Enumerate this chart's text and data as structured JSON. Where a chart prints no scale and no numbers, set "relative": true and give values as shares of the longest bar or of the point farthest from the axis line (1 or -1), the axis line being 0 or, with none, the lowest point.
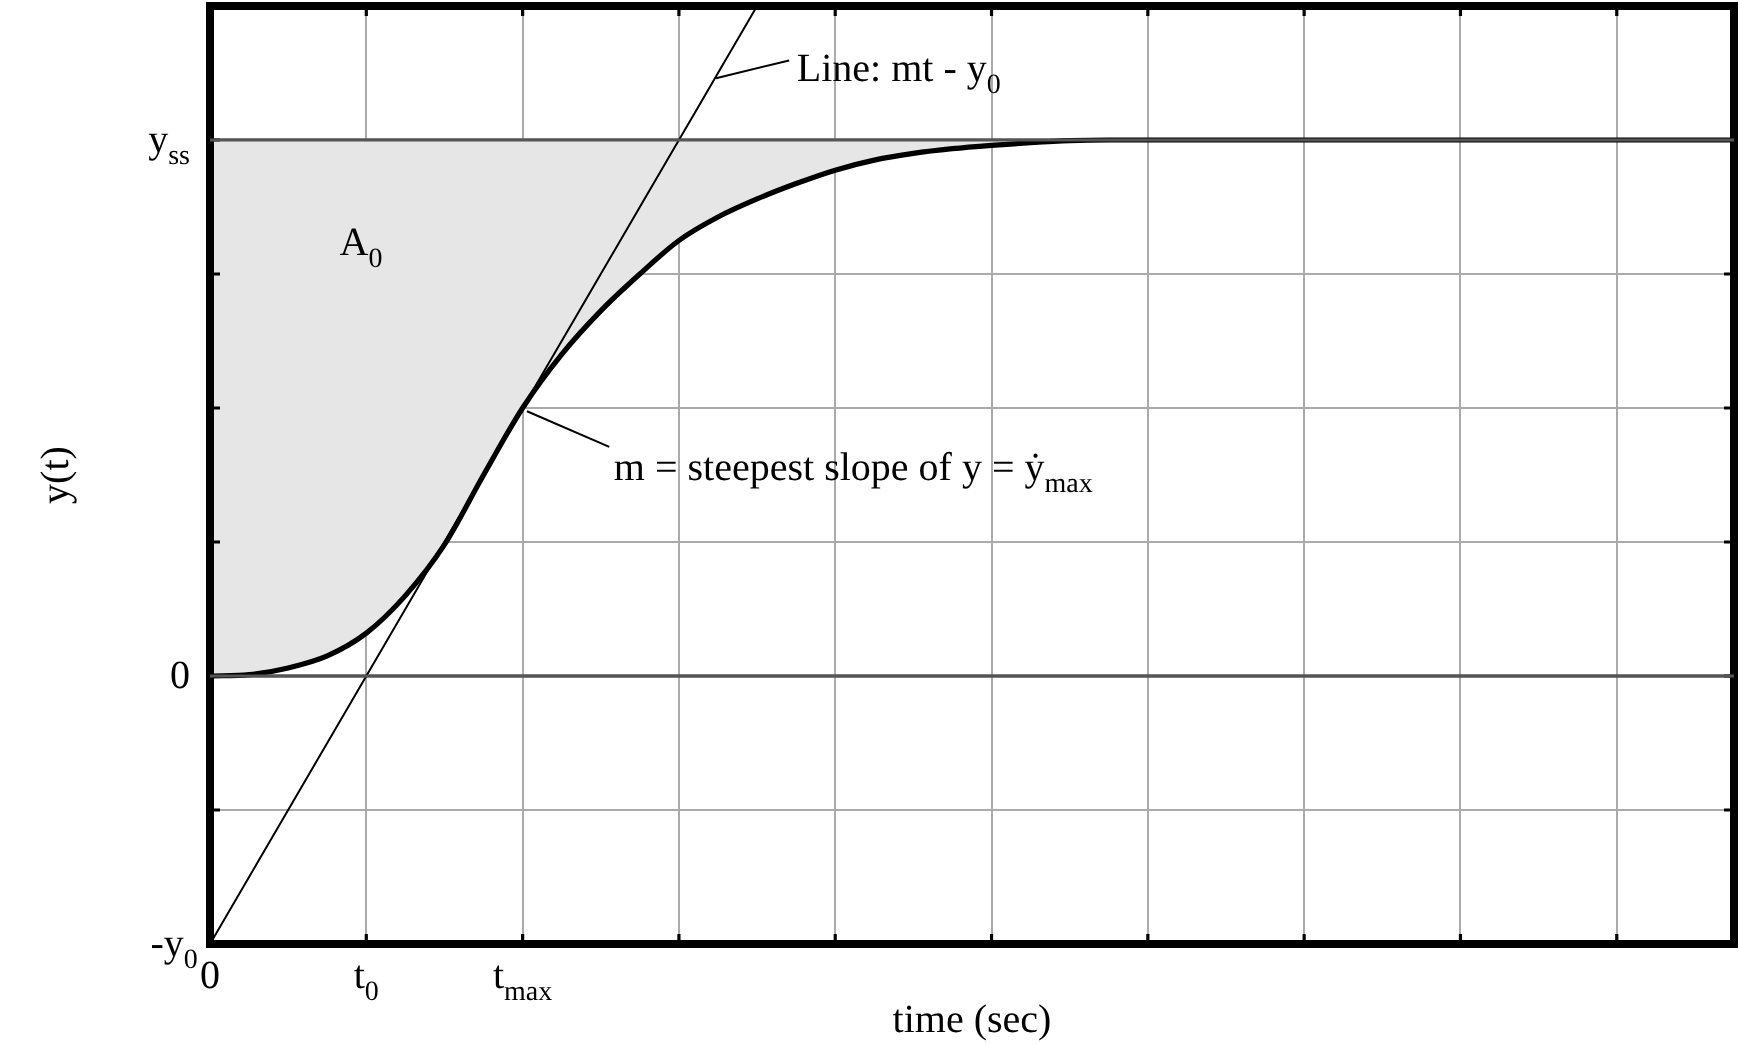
{
  "chart_data": {
    "type": "line",
    "xlabel": "time (sec)",
    "ylabel": "y(t)",
    "relative": true,
    "categories": [
      "0",
      null,
      null,
      null,
      "t$_{0}$",
      null,
      null,
      null,
      "t$_{max}$",
      null,
      null,
      null,
      null,
      null,
      null,
      null,
      null,
      null,
      null,
      null,
      null,
      null,
      null,
      null,
      null,
      null,
      null,
      null,
      null,
      null,
      null,
      null,
      null,
      null,
      null,
      null,
      null,
      null,
      null,
      null
    ],
    "grid": true,
    "legend": false,
    "marker": "none",
    "line_style": "solid",
    "series": [
      {
        "color": "#000000",
        "values": [
          0,
          0.002,
          0.012,
          0.03,
          0.064,
          0.12,
          0.196,
          0.3,
          0.4,
          0.48,
          0.545,
          0.6,
          0.65,
          0.685,
          0.712,
          0.735,
          0.755,
          0.77,
          0.78,
          0.787,
          0.792,
          0.796,
          0.799,
          0.8,
          0.8,
          0.8,
          0.8,
          0.8,
          0.8,
          0.8,
          0.8,
          0.8,
          0.8,
          0.8,
          0.8,
          0.8,
          0.8,
          0.8,
          0.8,
          0.8
        ],
        "lower": [
          0,
          0.002,
          0.012,
          0.03,
          0.064,
          0.12,
          0.196,
          0.3,
          0.4,
          0.48,
          0.545,
          0.6,
          0.65,
          0.685,
          0.712,
          0.735,
          0.755,
          0.77,
          0.78,
          0.787,
          0.792,
          0.796,
          0.799,
          0.8,
          0.8,
          0.8,
          0.8,
          0.8,
          0.8,
          0.8,
          0.8,
          0.8,
          0.8,
          0.8,
          0.8,
          0.8,
          0.8,
          0.8,
          0.8,
          0.8
        ],
        "upper": [
          0.8,
          0.8,
          0.8,
          0.8,
          0.8,
          0.8,
          0.8,
          0.8,
          0.8,
          0.8,
          0.8,
          0.8,
          0.8,
          0.8,
          0.8,
          0.8,
          0.8,
          0.8,
          0.8,
          0.8,
          0.8,
          0.8,
          0.8,
          0.8,
          0.8,
          0.8,
          0.8,
          0.8,
          0.8,
          0.8,
          0.8,
          0.8,
          0.8,
          0.8,
          0.8,
          0.8,
          0.8,
          0.8,
          0.8,
          0.8
        ]
      },
      {
        "color": "#000000",
        "values": [
          -0.4,
          -0.3,
          -0.2,
          -0.1,
          0,
          0.1,
          0.2,
          0.3,
          0.4,
          0.5,
          0.6,
          0.7,
          0.8,
          0.9,
          1,
          null,
          null,
          null,
          null,
          null,
          null,
          null,
          null,
          null,
          null,
          null,
          null,
          null,
          null,
          null,
          null,
          null,
          null,
          null,
          null,
          null,
          null,
          null,
          null,
          null
        ]
      }
    ],
    "ref_lines": [
      {
        "axis": "y",
        "value": 0,
        "label": "0",
        "color": "#555555"
      },
      {
        "axis": "y",
        "value": 0.8,
        "label": "y$_{ss}$",
        "color": "#555555"
      }
    ],
    "annotations": [
      "A$_{0}$",
      "Line: mt - y$_{0}$",
      "m = steepest slope of y = ẏ$_{max}$",
      "-y$_{0}$"
    ]
  }
}
